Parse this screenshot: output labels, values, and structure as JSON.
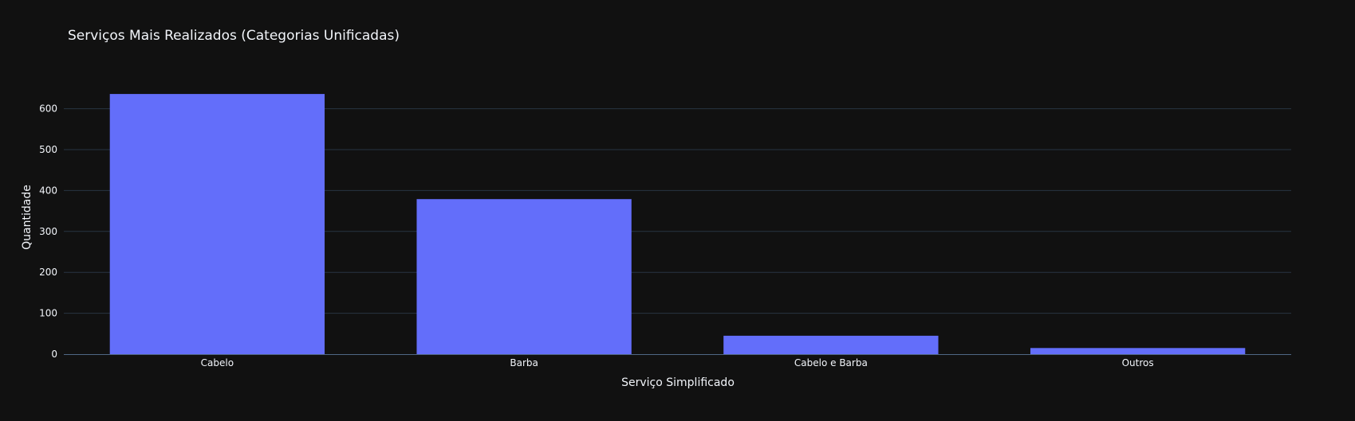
{
  "chart_data": {
    "type": "bar",
    "title": "Serviços Mais Realizados (Categorias Unificadas)",
    "xlabel": "Serviço Simplificado",
    "ylabel": "Quantidade",
    "categories": [
      "Cabelo",
      "Barba",
      "Cabelo e Barba",
      "Outros"
    ],
    "values": [
      636,
      379,
      45,
      15
    ],
    "ylim": [
      0,
      670
    ],
    "yticks": [
      0,
      100,
      200,
      300,
      400,
      500,
      600
    ],
    "grid": true,
    "legend": "none"
  },
  "colors": {
    "background": "#111111",
    "bar": "#636efa",
    "grid": "#283442",
    "axis_line": "#506784",
    "text": "#f2f5fa"
  }
}
